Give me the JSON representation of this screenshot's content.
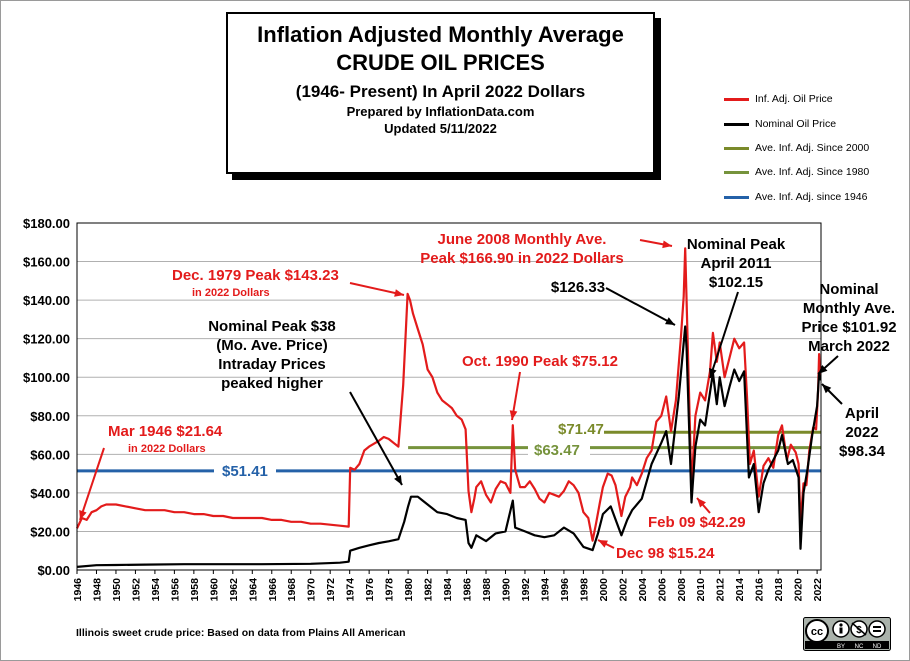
{
  "title": {
    "line1": "Inflation Adjusted Monthly Average",
    "line2": "CRUDE OIL PRICES",
    "line3": "(1946- Present) In April 2022 Dollars",
    "line4": "Prepared by InflationData.com",
    "line5": "Updated 5/11/2022"
  },
  "legend": [
    {
      "label": "Inf. Adj. Oil Price",
      "color": "#e31b1b"
    },
    {
      "label": "Nominal Oil Price",
      "color": "#000000"
    },
    {
      "label": "Ave. Inf. Adj. Since 2000",
      "color": "#7a8a2a"
    },
    {
      "label": "Ave. Inf. Adj. Since 1980",
      "color": "#76933c"
    },
    {
      "label": "Ave. Inf. Adj. since 1946",
      "color": "#2461a8"
    }
  ],
  "footnote": "Illinois sweet crude price: Based on data from Plains All American",
  "license": {
    "cc": "cc",
    "by": "BY",
    "nc": "NC",
    "nd": "ND"
  },
  "chart_data": {
    "type": "line",
    "xlim": [
      1946,
      2022.4
    ],
    "ylim": [
      0,
      180
    ],
    "y_ticks": [
      "$0.00",
      "$20.00",
      "$40.00",
      "$60.00",
      "$80.00",
      "$100.00",
      "$120.00",
      "$140.00",
      "$160.00",
      "$180.00"
    ],
    "y_tick_values": [
      0,
      20,
      40,
      60,
      80,
      100,
      120,
      140,
      160,
      180
    ],
    "x_ticks": [
      "1946",
      "1948",
      "1950",
      "1952",
      "1954",
      "1956",
      "1958",
      "1960",
      "1962",
      "1964",
      "1966",
      "1968",
      "1970",
      "1972",
      "1974",
      "1976",
      "1978",
      "1980",
      "1982",
      "1984",
      "1986",
      "1988",
      "1990",
      "1992",
      "1994",
      "1996",
      "1998",
      "2000",
      "2002",
      "2004",
      "2006",
      "2008",
      "2010",
      "2012",
      "2014",
      "2016",
      "2018",
      "2020",
      "2022"
    ],
    "grid": "horizontal",
    "series": [
      {
        "name": "Inf. Adj. Oil Price",
        "color": "#e31b1b",
        "points": [
          [
            1946,
            21.6
          ],
          [
            1946.5,
            27
          ],
          [
            1947,
            26
          ],
          [
            1947.5,
            30
          ],
          [
            1948,
            31
          ],
          [
            1948.5,
            33
          ],
          [
            1949,
            34
          ],
          [
            1950,
            34
          ],
          [
            1951,
            33
          ],
          [
            1952,
            32
          ],
          [
            1953,
            31
          ],
          [
            1954,
            31
          ],
          [
            1955,
            31
          ],
          [
            1956,
            30
          ],
          [
            1957,
            30
          ],
          [
            1958,
            29
          ],
          [
            1959,
            29
          ],
          [
            1960,
            28
          ],
          [
            1961,
            28
          ],
          [
            1962,
            27
          ],
          [
            1963,
            27
          ],
          [
            1964,
            27
          ],
          [
            1965,
            27
          ],
          [
            1966,
            26
          ],
          [
            1967,
            26
          ],
          [
            1968,
            25
          ],
          [
            1969,
            25
          ],
          [
            1970,
            24
          ],
          [
            1971,
            24
          ],
          [
            1972,
            23.5
          ],
          [
            1973,
            23
          ],
          [
            1973.9,
            22.5
          ],
          [
            1974.05,
            53
          ],
          [
            1974.5,
            52
          ],
          [
            1975,
            55
          ],
          [
            1975.5,
            62
          ],
          [
            1976,
            64
          ],
          [
            1977,
            67
          ],
          [
            1977.5,
            69
          ],
          [
            1978,
            68
          ],
          [
            1978.5,
            66
          ],
          [
            1979,
            64
          ],
          [
            1979.5,
            96
          ],
          [
            1979.8,
            128
          ],
          [
            1979.95,
            143.2
          ],
          [
            1980.2,
            140
          ],
          [
            1980.5,
            133
          ],
          [
            1981,
            125
          ],
          [
            1981.5,
            117
          ],
          [
            1982,
            104
          ],
          [
            1982.5,
            100
          ],
          [
            1983,
            92
          ],
          [
            1983.5,
            88
          ],
          [
            1984,
            86
          ],
          [
            1984.5,
            84
          ],
          [
            1985,
            80
          ],
          [
            1985.5,
            78
          ],
          [
            1985.9,
            73
          ],
          [
            1986.2,
            41
          ],
          [
            1986.5,
            30
          ],
          [
            1986.8,
            37
          ],
          [
            1987,
            43
          ],
          [
            1987.5,
            46
          ],
          [
            1988,
            39
          ],
          [
            1988.5,
            35
          ],
          [
            1989,
            42
          ],
          [
            1989.5,
            46
          ],
          [
            1990,
            45
          ],
          [
            1990.5,
            40
          ],
          [
            1990.75,
            75.1
          ],
          [
            1991,
            52
          ],
          [
            1991.5,
            43
          ],
          [
            1992,
            43
          ],
          [
            1992.5,
            46
          ],
          [
            1993,
            42
          ],
          [
            1993.5,
            37
          ],
          [
            1994,
            35
          ],
          [
            1994.5,
            40
          ],
          [
            1995,
            39
          ],
          [
            1995.5,
            38
          ],
          [
            1996,
            41
          ],
          [
            1996.5,
            46
          ],
          [
            1997,
            44
          ],
          [
            1997.5,
            40
          ],
          [
            1998,
            30
          ],
          [
            1998.5,
            27
          ],
          [
            1998.95,
            15.2
          ],
          [
            1999.3,
            24
          ],
          [
            1999.7,
            35
          ],
          [
            2000,
            43
          ],
          [
            2000.5,
            50
          ],
          [
            2000.9,
            49
          ],
          [
            2001.3,
            44
          ],
          [
            2001.9,
            28
          ],
          [
            2002.3,
            38
          ],
          [
            2002.8,
            43
          ],
          [
            2003,
            48
          ],
          [
            2003.5,
            44
          ],
          [
            2004,
            50
          ],
          [
            2004.5,
            58
          ],
          [
            2005,
            62
          ],
          [
            2005.5,
            77
          ],
          [
            2006,
            80
          ],
          [
            2006.5,
            90
          ],
          [
            2007,
            72
          ],
          [
            2007.5,
            88
          ],
          [
            2008,
            120
          ],
          [
            2008.3,
            142
          ],
          [
            2008.45,
            166.9
          ],
          [
            2008.8,
            100
          ],
          [
            2009.1,
            42.3
          ],
          [
            2009.5,
            80
          ],
          [
            2010,
            92
          ],
          [
            2010.5,
            88
          ],
          [
            2011,
            103
          ],
          [
            2011.3,
            123
          ],
          [
            2011.7,
            108
          ],
          [
            2012,
            118
          ],
          [
            2012.5,
            100
          ],
          [
            2013,
            110
          ],
          [
            2013.5,
            120
          ],
          [
            2014,
            115
          ],
          [
            2014.5,
            118
          ],
          [
            2014.8,
            90
          ],
          [
            2015.1,
            55
          ],
          [
            2015.5,
            62
          ],
          [
            2016,
            38
          ],
          [
            2016.5,
            54
          ],
          [
            2017,
            58
          ],
          [
            2017.5,
            53
          ],
          [
            2018,
            70
          ],
          [
            2018.4,
            75
          ],
          [
            2018.9,
            57
          ],
          [
            2019.3,
            65
          ],
          [
            2019.8,
            61
          ],
          [
            2020.1,
            55
          ],
          [
            2020.3,
            24
          ],
          [
            2020.6,
            45
          ],
          [
            2020.9,
            44
          ],
          [
            2021.2,
            62
          ],
          [
            2021.6,
            74
          ],
          [
            2021.9,
            73
          ],
          [
            2022.1,
            93
          ],
          [
            2022.2,
            112
          ],
          [
            2022.3,
            98.3
          ]
        ]
      },
      {
        "name": "Nominal Oil Price",
        "color": "#000000",
        "points": [
          [
            1946,
            1.6
          ],
          [
            1948,
            2.5
          ],
          [
            1950,
            2.6
          ],
          [
            1953,
            2.8
          ],
          [
            1957,
            3.0
          ],
          [
            1965,
            3.0
          ],
          [
            1970,
            3.2
          ],
          [
            1973,
            3.8
          ],
          [
            1973.9,
            4.3
          ],
          [
            1974.05,
            10
          ],
          [
            1975,
            11.5
          ],
          [
            1976,
            12.8
          ],
          [
            1977,
            14
          ],
          [
            1978,
            14.9
          ],
          [
            1979,
            16
          ],
          [
            1979.6,
            25
          ],
          [
            1980,
            33
          ],
          [
            1980.3,
            38
          ],
          [
            1981,
            38
          ],
          [
            1981.5,
            36
          ],
          [
            1982,
            34
          ],
          [
            1983,
            30
          ],
          [
            1984,
            29
          ],
          [
            1985,
            27
          ],
          [
            1985.9,
            26
          ],
          [
            1986.2,
            14
          ],
          [
            1986.5,
            11.5
          ],
          [
            1987,
            18
          ],
          [
            1988,
            15
          ],
          [
            1989,
            19
          ],
          [
            1990,
            20
          ],
          [
            1990.75,
            36
          ],
          [
            1991,
            22
          ],
          [
            1992,
            20
          ],
          [
            1993,
            18
          ],
          [
            1994,
            17
          ],
          [
            1995,
            18
          ],
          [
            1996,
            22
          ],
          [
            1997,
            19
          ],
          [
            1998,
            12
          ],
          [
            1998.95,
            10.3
          ],
          [
            1999.5,
            19
          ],
          [
            2000,
            29
          ],
          [
            2000.8,
            33
          ],
          [
            2001.9,
            18
          ],
          [
            2002.5,
            26
          ],
          [
            2003,
            31
          ],
          [
            2004,
            37
          ],
          [
            2005,
            55
          ],
          [
            2006,
            66
          ],
          [
            2006.5,
            72
          ],
          [
            2007,
            55
          ],
          [
            2007.8,
            90
          ],
          [
            2008.45,
            126.3
          ],
          [
            2008.6,
            115
          ],
          [
            2009.1,
            35
          ],
          [
            2009.5,
            64
          ],
          [
            2010,
            78
          ],
          [
            2010.5,
            75
          ],
          [
            2011.3,
            102.2
          ],
          [
            2011.7,
            86
          ],
          [
            2012,
            100
          ],
          [
            2012.5,
            85
          ],
          [
            2013,
            95
          ],
          [
            2013.5,
            104
          ],
          [
            2014,
            98
          ],
          [
            2014.5,
            103
          ],
          [
            2015,
            48
          ],
          [
            2015.5,
            55
          ],
          [
            2016,
            30
          ],
          [
            2016.5,
            45
          ],
          [
            2017,
            52
          ],
          [
            2018,
            62
          ],
          [
            2018.4,
            70
          ],
          [
            2019,
            55
          ],
          [
            2019.5,
            57
          ],
          [
            2020.1,
            48
          ],
          [
            2020.3,
            11
          ],
          [
            2020.6,
            40
          ],
          [
            2021,
            52
          ],
          [
            2021.5,
            70
          ],
          [
            2022,
            85
          ],
          [
            2022.2,
            101.9
          ],
          [
            2022.3,
            98.3
          ]
        ]
      }
    ],
    "reference_lines": [
      {
        "name": "Ave. Inf. Adj. since 1946",
        "value": 51.41,
        "label": "$51.41",
        "color": "#2461a8",
        "from": 1946,
        "to": 2022.4
      },
      {
        "name": "Ave. Inf. Adj. Since 1980",
        "value": 63.47,
        "label": "$63.47",
        "color": "#76933c",
        "from": 1980,
        "to": 2022.4
      },
      {
        "name": "Ave. Inf. Adj. Since 2000",
        "value": 71.47,
        "label": "$71.47",
        "color": "#7a8a2a",
        "from": 2000,
        "to": 2022.4
      }
    ],
    "annotations": [
      {
        "id": "mar1946",
        "lines": [
          "Mar 1946 $21.64"
        ],
        "sub": "in 2022 Dollars",
        "color": "#e31b1b"
      },
      {
        "id": "dec1979",
        "lines": [
          "Dec. 1979 Peak $143.23"
        ],
        "sub": "in 2022 Dollars",
        "color": "#e31b1b"
      },
      {
        "id": "nominal38",
        "lines": [
          "Nominal Peak $38",
          "(Mo. Ave. Price)",
          "Intraday Prices",
          "peaked higher"
        ],
        "color": "#000000"
      },
      {
        "id": "oct1990",
        "lines": [
          "Oct. 1990 Peak $75.12"
        ],
        "color": "#e31b1b"
      },
      {
        "id": "june2008",
        "lines": [
          "June 2008 Monthly Ave.",
          "Peak $166.90 in 2022 Dollars"
        ],
        "color": "#e31b1b"
      },
      {
        "id": "nom126",
        "lines": [
          "$126.33"
        ],
        "color": "#000000"
      },
      {
        "id": "nomPeak2011",
        "lines": [
          "Nominal Peak",
          "April 2011",
          "$102.15"
        ],
        "color": "#000000"
      },
      {
        "id": "nomMar2022",
        "lines": [
          "Nominal",
          "Monthly Ave.",
          "Price $101.92",
          "March 2022"
        ],
        "color": "#000000"
      },
      {
        "id": "apr2022",
        "lines": [
          "April",
          "2022",
          "$98.34"
        ],
        "color": "#000000"
      },
      {
        "id": "feb09",
        "lines": [
          "Feb 09 $42.29"
        ],
        "color": "#e31b1b"
      },
      {
        "id": "dec98",
        "lines": [
          "Dec 98 $15.24"
        ],
        "color": "#e31b1b"
      }
    ]
  }
}
